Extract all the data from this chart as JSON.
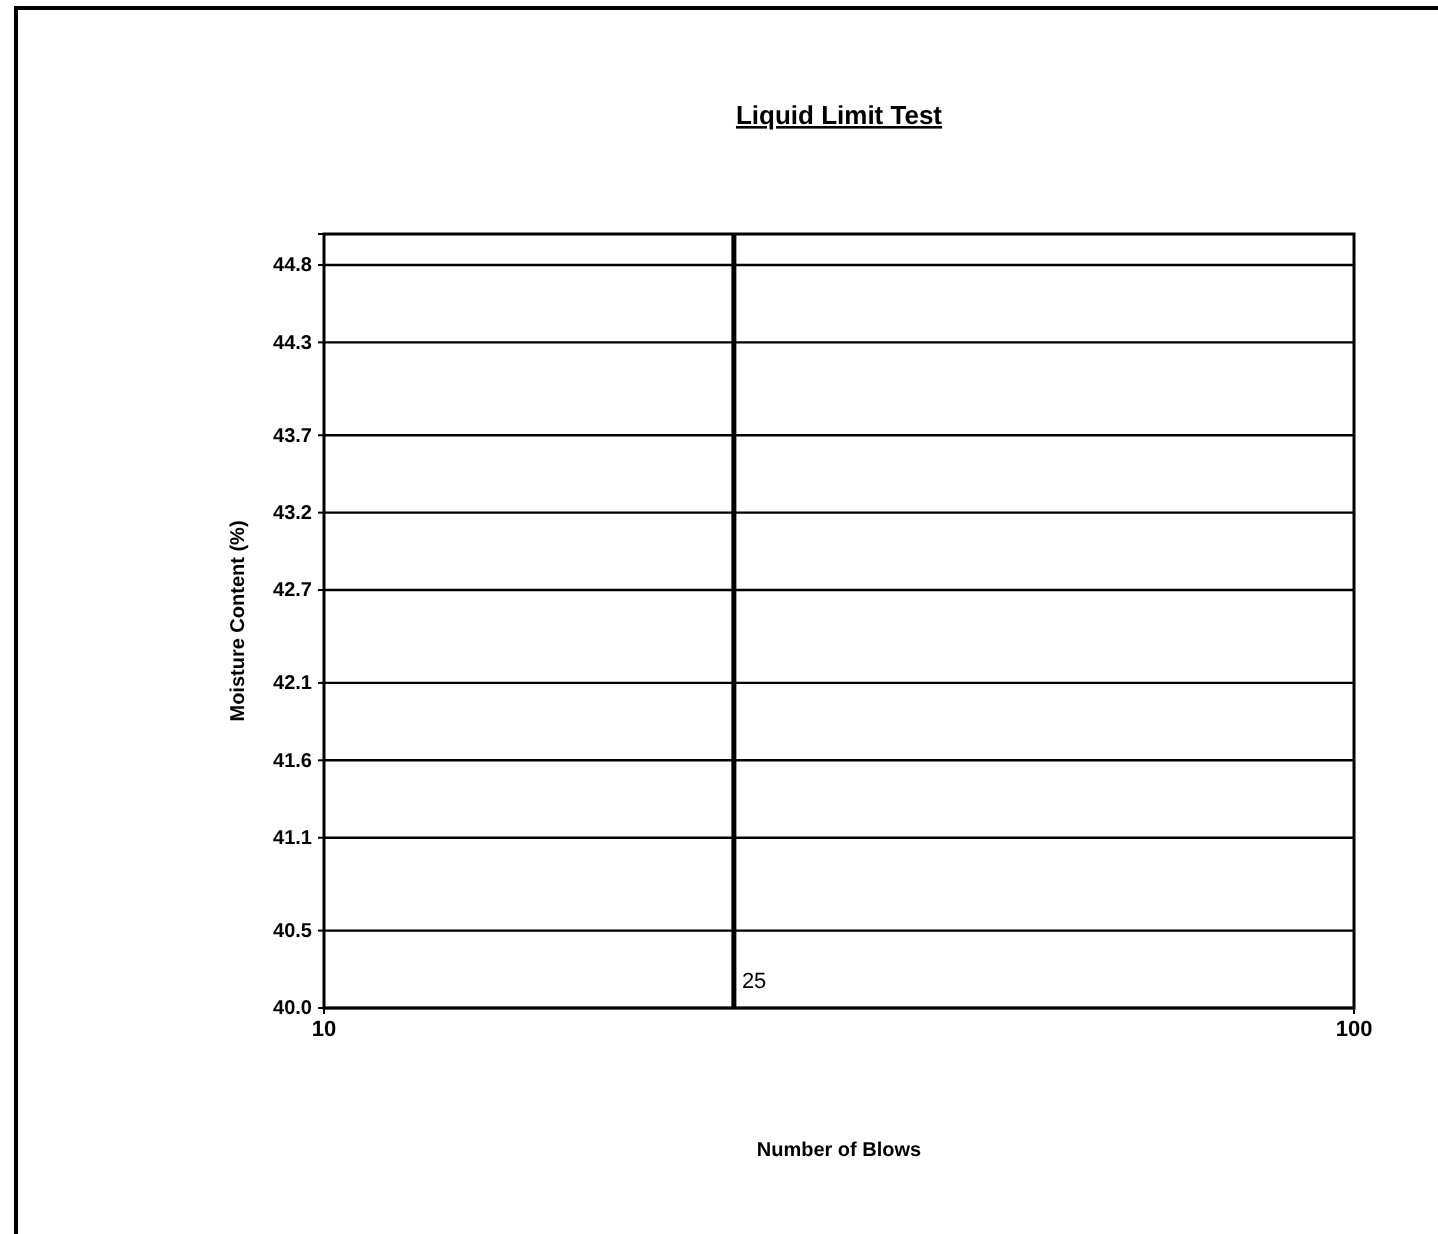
{
  "chart_data": {
    "type": "line",
    "title": "Liquid Limit Test",
    "xlabel": "Number of Blows",
    "ylabel": "Moisture Content (%)",
    "log": "x",
    "xlim": [
      10,
      100
    ],
    "xticks": [
      10,
      100
    ],
    "ylim": [
      40.0,
      45.0
    ],
    "yticks": [
      {
        "value": 40.0,
        "label": "40.0"
      },
      40.5,
      41.1,
      41.6,
      42.1,
      42.7,
      43.2,
      43.7,
      44.3,
      44.8
    ],
    "grid": "y",
    "ref_lines": [
      {
        "axis": "x",
        "value": 25,
        "label": "25",
        "color": "#000000"
      }
    ]
  }
}
